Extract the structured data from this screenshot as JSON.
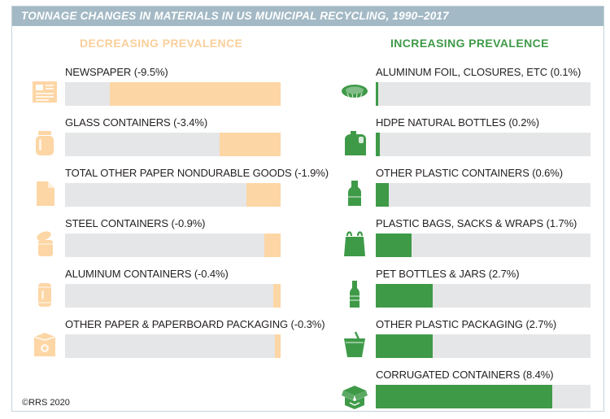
{
  "title": "TONNAGE CHANGES IN MATERIALS IN US MUNICIPAL RECYCLING, 1990–2017",
  "copyright": "©RRS 2020",
  "colors": {
    "title_bar": "#a3b9c5",
    "decreasing": "#fdd6a5",
    "increasing": "#3f9a48",
    "track": "#e5e6e7"
  },
  "chart_data": [
    {
      "type": "bar",
      "title": "DECREASING PREVALENCE",
      "unit": "%",
      "direction": "decreasing",
      "categories": [
        "NEWSPAPER",
        "GLASS CONTAINERS",
        "TOTAL OTHER PAPER NONDURABLE GOODS",
        "STEEL CONTAINERS",
        "ALUMINUM CONTAINERS",
        "OTHER PAPER & PAPERBOARD PACKAGING"
      ],
      "values": [
        -9.5,
        -3.4,
        -1.9,
        -0.9,
        -0.4,
        -0.3
      ],
      "labels": [
        "NEWSPAPER (-9.5%)",
        "GLASS CONTAINERS (-3.4%)",
        "TOTAL OTHER PAPER NONDURABLE GOODS (-1.9%)",
        "STEEL CONTAINERS (-0.9%)",
        "ALUMINUM CONTAINERS (-0.4%)",
        "OTHER PAPER & PAPERBOARD PACKAGING (-0.3%)"
      ],
      "icons": [
        "newspaper-icon",
        "glass-jar-icon",
        "paper-sheet-icon",
        "steel-can-icon",
        "aluminum-can-icon",
        "paperboard-box-icon"
      ]
    },
    {
      "type": "bar",
      "title": "INCREASING PREVALENCE",
      "unit": "%",
      "direction": "increasing",
      "categories": [
        "ALUMINUM FOIL, CLOSURES, ETC",
        "HDPE NATURAL BOTTLES",
        "OTHER PLASTIC CONTAINERS",
        "PLASTIC BAGS, SACKS & WRAPS",
        "PET BOTTLES & JARS",
        "OTHER PLASTIC PACKAGING",
        "CORRUGATED CONTAINERS"
      ],
      "values": [
        0.1,
        0.2,
        0.6,
        1.7,
        2.7,
        2.7,
        8.4
      ],
      "labels": [
        "ALUMINUM FOIL, CLOSURES, ETC (0.1%)",
        "HDPE NATURAL BOTTLES (0.2%)",
        "OTHER PLASTIC CONTAINERS (0.6%)",
        "PLASTIC BAGS, SACKS & WRAPS (1.7%)",
        "PET BOTTLES & JARS (2.7%)",
        "OTHER PLASTIC PACKAGING (2.7%)",
        "CORRUGATED CONTAINERS (8.4%)"
      ],
      "icons": [
        "foil-tray-icon",
        "jug-icon",
        "plastic-bottle-icon",
        "plastic-bag-icon",
        "pet-bottle-icon",
        "plastic-cup-icon",
        "corrugated-box-icon"
      ]
    }
  ]
}
